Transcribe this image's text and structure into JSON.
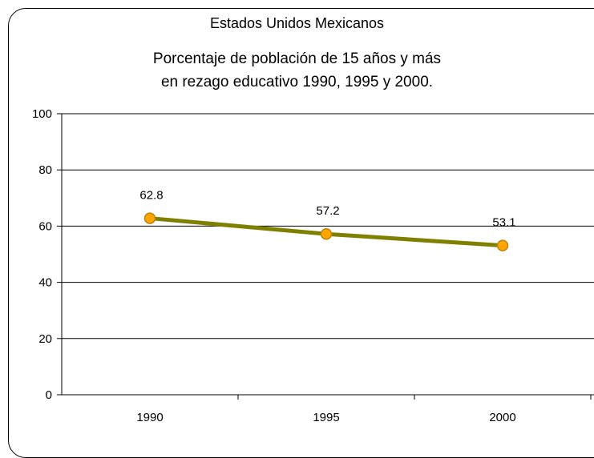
{
  "region_title": "Estados Unidos Mexicanos",
  "chart_data": {
    "type": "line",
    "title_lines": [
      "Porcentaje de población de 15 años y más",
      "en rezago educativo 1990, 1995 y 2000."
    ],
    "categories": [
      "1990",
      "1995",
      "2000"
    ],
    "series": [
      {
        "values": [
          62.8,
          57.2,
          53.1
        ],
        "labels": [
          "62.8",
          "57.2",
          "53.1"
        ]
      }
    ],
    "ylim": [
      0,
      100
    ],
    "yticks": [
      0,
      20,
      40,
      60,
      80,
      100
    ],
    "ytick_labels": [
      "0",
      "20",
      "40",
      "60",
      "80",
      "100"
    ],
    "grid": true,
    "line_color": "#808000",
    "marker_color": "#FFA500",
    "marker_edge_color": "#B8860B"
  }
}
